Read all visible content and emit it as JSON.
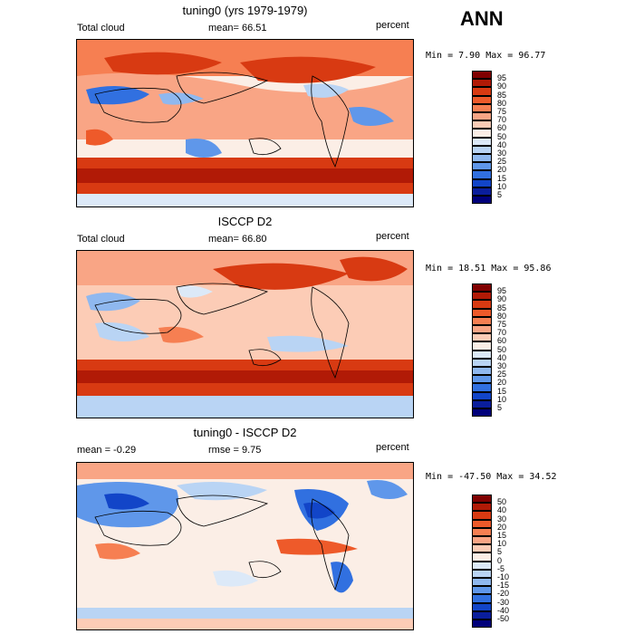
{
  "season": "ANN",
  "panels": [
    {
      "id": "model",
      "title": "tuning0 (yrs 1979-1979)",
      "left_label": "Total cloud",
      "center_label": "mean=  66.51",
      "right_label": "percent",
      "minmax": "Min =   7.90 Max =  96.77",
      "colorbar": {
        "levels": [
          "95",
          "90",
          "85",
          "80",
          "75",
          "70",
          "60",
          "50",
          "40",
          "30",
          "25",
          "20",
          "15",
          "10",
          "5"
        ],
        "colors": [
          "#800000",
          "#b11a06",
          "#d83a12",
          "#ee5a2a",
          "#f67f52",
          "#f9a585",
          "#fcccb6",
          "#fbeee6",
          "#dce9f8",
          "#b9d4f4",
          "#8fb8ef",
          "#5f97ea",
          "#3170e0",
          "#1245c8",
          "#0a1e9c",
          "#00007a"
        ]
      }
    },
    {
      "id": "obs",
      "title": "ISCCP D2",
      "left_label": "Total cloud",
      "center_label": "mean=  66.80",
      "right_label": "percent",
      "minmax": "Min =  18.51 Max =  95.86",
      "colorbar": {
        "levels": [
          "95",
          "90",
          "85",
          "80",
          "75",
          "70",
          "60",
          "50",
          "40",
          "30",
          "25",
          "20",
          "15",
          "10",
          "5"
        ],
        "colors": [
          "#800000",
          "#b11a06",
          "#d83a12",
          "#ee5a2a",
          "#f67f52",
          "#f9a585",
          "#fcccb6",
          "#fbeee6",
          "#dce9f8",
          "#b9d4f4",
          "#8fb8ef",
          "#5f97ea",
          "#3170e0",
          "#1245c8",
          "#0a1e9c",
          "#00007a"
        ]
      }
    },
    {
      "id": "diff",
      "title": "tuning0 - ISCCP D2",
      "left_label": "mean =  -0.29",
      "center_label": "rmse =   9.75",
      "right_label": "percent",
      "minmax": "Min = -47.50 Max =  34.52",
      "colorbar": {
        "levels": [
          "50",
          "40",
          "30",
          "20",
          "15",
          "10",
          "5",
          "0",
          "-5",
          "-10",
          "-15",
          "-20",
          "-30",
          "-40",
          "-50"
        ],
        "colors": [
          "#800000",
          "#b11a06",
          "#d83a12",
          "#ee5a2a",
          "#f67f52",
          "#f9a585",
          "#fcccb6",
          "#fbeee6",
          "#dce9f8",
          "#b9d4f4",
          "#8fb8ef",
          "#5f97ea",
          "#3170e0",
          "#1245c8",
          "#0a1e9c",
          "#00007a"
        ]
      }
    }
  ]
}
